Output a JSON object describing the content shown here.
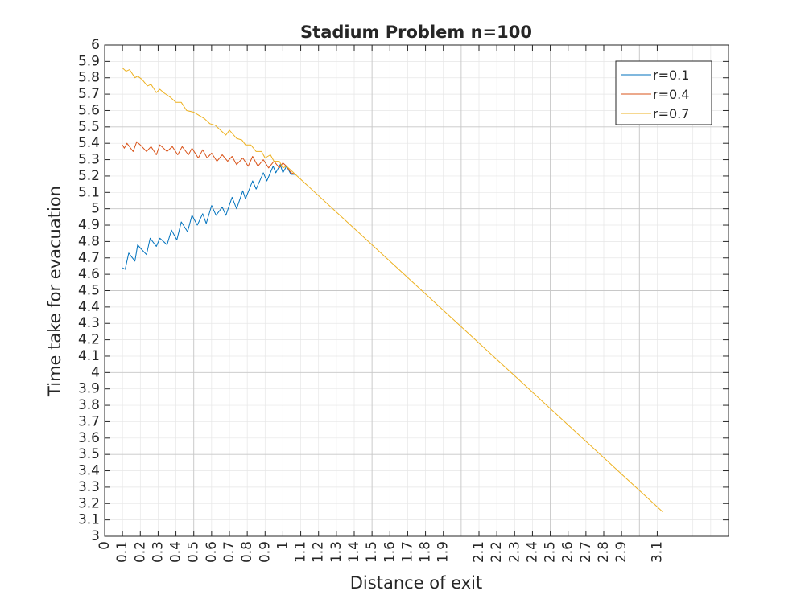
{
  "chart_data": {
    "type": "line",
    "title": "Stadium Problem n=100",
    "xlabel": "Distance of exit",
    "ylabel": "Time take for evacuation",
    "xlim": [
      0,
      3.5
    ],
    "ylim": [
      3,
      6
    ],
    "grid": true,
    "minor_grid": true,
    "legend_position": "top-right",
    "x_ticks": [
      0,
      0.1,
      0.2,
      0.3,
      0.4,
      0.5,
      0.6,
      0.7,
      0.8,
      0.9,
      1,
      1.1,
      1.2,
      1.3,
      1.4,
      1.5,
      1.6,
      1.7,
      1.8,
      1.9,
      2.1,
      2.2,
      2.3,
      2.4,
      2.5,
      2.6,
      2.7,
      2.8,
      2.9,
      3.1
    ],
    "y_ticks": [
      3,
      3.1,
      3.2,
      3.3,
      3.4,
      3.5,
      3.6,
      3.7,
      3.8,
      3.9,
      4,
      4.1,
      4.2,
      4.3,
      4.4,
      4.5,
      4.6,
      4.7,
      4.8,
      4.9,
      5,
      5.1,
      5.2,
      5.3,
      5.4,
      5.5,
      5.6,
      5.7,
      5.8,
      5.9,
      6
    ],
    "series": [
      {
        "name": "r=0.1",
        "color": "#0072BD",
        "x": [
          0.1,
          0.115,
          0.135,
          0.17,
          0.185,
          0.2,
          0.235,
          0.255,
          0.29,
          0.31,
          0.33,
          0.35,
          0.375,
          0.405,
          0.43,
          0.465,
          0.49,
          0.52,
          0.55,
          0.57,
          0.6,
          0.625,
          0.66,
          0.68,
          0.715,
          0.74,
          0.775,
          0.79,
          0.83,
          0.85,
          0.89,
          0.91,
          0.945,
          0.96,
          0.985,
          1.0,
          1.02,
          1.045,
          1.07
        ],
        "y": [
          4.64,
          4.63,
          4.73,
          4.68,
          4.78,
          4.76,
          4.72,
          4.82,
          4.77,
          4.82,
          4.8,
          4.78,
          4.87,
          4.81,
          4.92,
          4.86,
          4.96,
          4.9,
          4.97,
          4.91,
          5.02,
          4.96,
          5.01,
          4.96,
          5.07,
          5.0,
          5.11,
          5.06,
          5.17,
          5.12,
          5.22,
          5.17,
          5.26,
          5.22,
          5.27,
          5.22,
          5.26,
          5.21,
          5.21
        ]
      },
      {
        "name": "r=0.4",
        "color": "#D95319",
        "x": [
          0.1,
          0.11,
          0.125,
          0.16,
          0.18,
          0.2,
          0.235,
          0.26,
          0.29,
          0.31,
          0.33,
          0.35,
          0.38,
          0.41,
          0.435,
          0.47,
          0.49,
          0.525,
          0.55,
          0.575,
          0.6,
          0.63,
          0.66,
          0.69,
          0.715,
          0.74,
          0.775,
          0.805,
          0.83,
          0.86,
          0.89,
          0.92,
          0.95,
          0.98,
          1.0,
          1.02,
          1.045,
          1.07
        ],
        "y": [
          5.39,
          5.37,
          5.4,
          5.35,
          5.41,
          5.39,
          5.35,
          5.38,
          5.33,
          5.39,
          5.37,
          5.35,
          5.38,
          5.33,
          5.38,
          5.33,
          5.37,
          5.31,
          5.36,
          5.31,
          5.34,
          5.29,
          5.33,
          5.29,
          5.32,
          5.27,
          5.31,
          5.26,
          5.32,
          5.26,
          5.3,
          5.25,
          5.29,
          5.25,
          5.28,
          5.26,
          5.22,
          5.21
        ]
      },
      {
        "name": "r=0.7",
        "color": "#EDB120",
        "x": [
          0.1,
          0.12,
          0.14,
          0.17,
          0.185,
          0.21,
          0.24,
          0.26,
          0.29,
          0.31,
          0.33,
          0.37,
          0.4,
          0.43,
          0.46,
          0.5,
          0.53,
          0.56,
          0.59,
          0.62,
          0.65,
          0.68,
          0.7,
          0.74,
          0.77,
          0.79,
          0.82,
          0.85,
          0.88,
          0.9,
          0.93,
          0.95,
          0.98,
          1.0,
          1.02,
          1.05,
          1.07,
          3.13
        ],
        "y": [
          5.86,
          5.84,
          5.85,
          5.8,
          5.81,
          5.79,
          5.75,
          5.76,
          5.71,
          5.73,
          5.71,
          5.68,
          5.65,
          5.65,
          5.6,
          5.59,
          5.57,
          5.55,
          5.52,
          5.51,
          5.48,
          5.45,
          5.48,
          5.43,
          5.42,
          5.39,
          5.39,
          5.35,
          5.35,
          5.31,
          5.33,
          5.29,
          5.29,
          5.25,
          5.26,
          5.23,
          5.21,
          3.15
        ]
      }
    ]
  }
}
